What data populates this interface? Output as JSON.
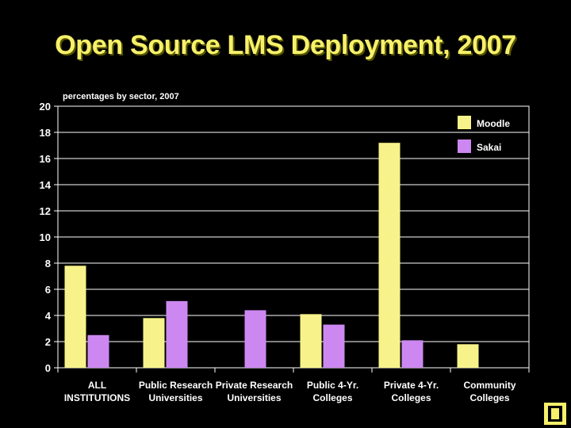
{
  "slide": {
    "title": "Open Source LMS Deployment, 2007"
  },
  "colors": {
    "background": "#000000",
    "title": "#f7f06a",
    "moodle": "#f7f38a",
    "sakai": "#cc88f0",
    "text": "#ffffff",
    "grid": "#ffffff"
  },
  "chart_data": {
    "type": "bar",
    "subtitle": "percentages by sector, 2007",
    "categories": [
      [
        "ALL",
        "INSTITUTIONS"
      ],
      [
        "Public Research",
        "Universities"
      ],
      [
        "Private Research",
        "Universities"
      ],
      [
        "Public 4-Yr.",
        "Colleges"
      ],
      [
        "Private 4-Yr.",
        "Colleges"
      ],
      [
        "Community",
        "Colleges"
      ]
    ],
    "series": [
      {
        "name": "Moodle",
        "color": "#f7f38a",
        "values": [
          7.8,
          3.8,
          0,
          4.1,
          17.2,
          1.8
        ]
      },
      {
        "name": "Sakai",
        "color": "#cc88f0",
        "values": [
          2.5,
          5.1,
          4.4,
          3.3,
          2.1,
          0
        ]
      }
    ],
    "ylim": [
      0,
      20
    ],
    "yticks": [
      0,
      2,
      4,
      6,
      8,
      10,
      12,
      14,
      16,
      18,
      20
    ],
    "grid": true,
    "legend_position": "top-right"
  }
}
